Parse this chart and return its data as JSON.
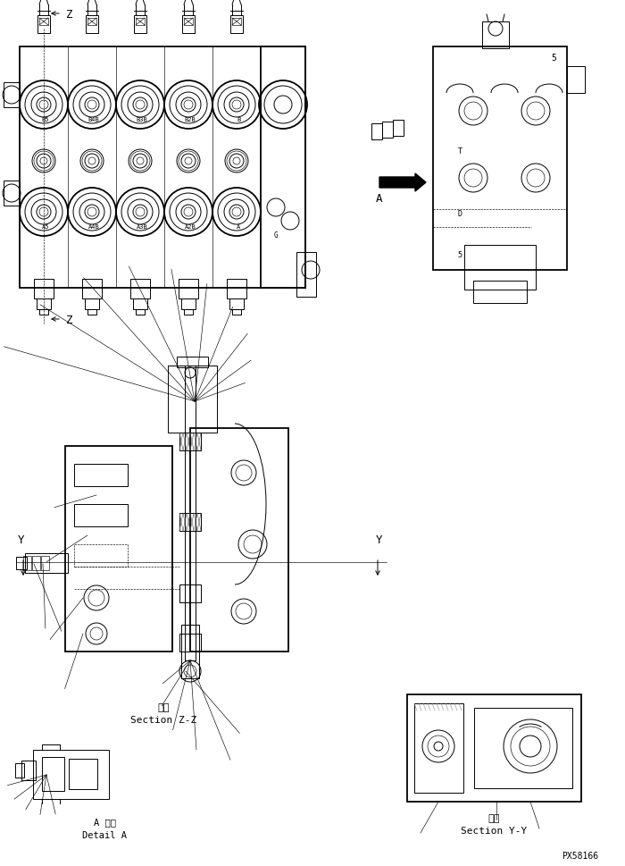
{
  "bg_color": "#ffffff",
  "line_color": "#000000",
  "part_number": "PX58166",
  "section_zz_label_jp": "断面",
  "section_zz_label_en": "Section Z-Z",
  "section_yy_label_jp": "断面",
  "section_yy_label_en": "Section Y-Y",
  "detail_a_label_jp": "A 詳細",
  "detail_a_label_en": "Detail A"
}
